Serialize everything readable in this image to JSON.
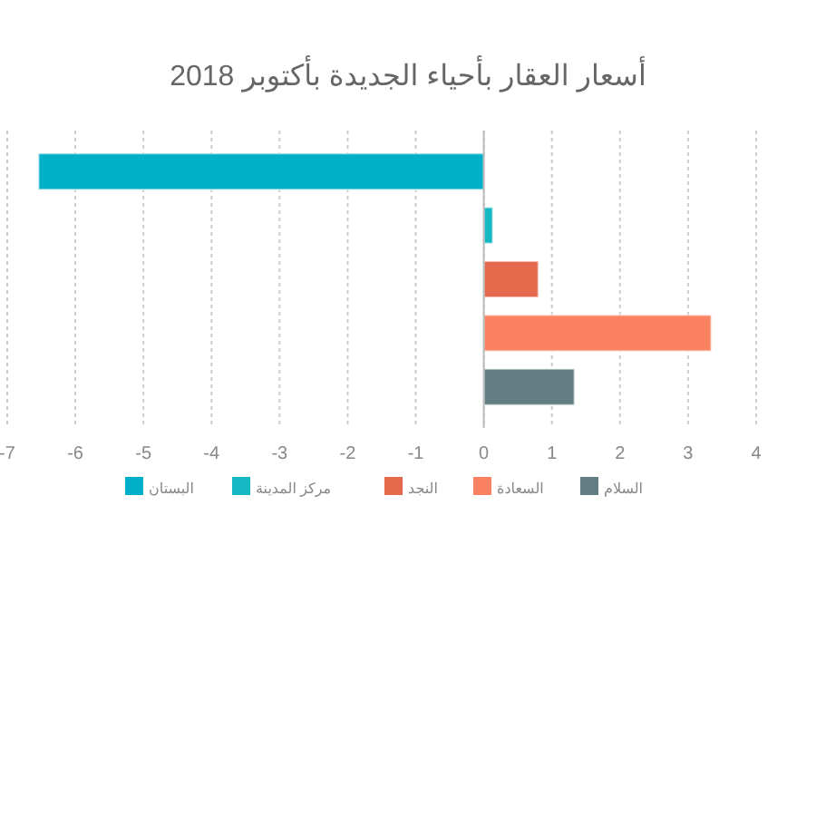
{
  "chart_data": {
    "type": "bar",
    "orientation": "horizontal",
    "title": "أسعار العقار بأحياء الجديدة بأكتوبر 2018",
    "categories": [
      null
    ],
    "series": [
      {
        "name": "البستان",
        "color": "#00afc8",
        "values": [
          -6.54
        ]
      },
      {
        "name": "مركز المدينة",
        "color": "#13b8c2",
        "values": [
          0.13
        ]
      },
      {
        "name": "النجد",
        "color": "#e5694d",
        "values": [
          0.8
        ]
      },
      {
        "name": "السعادة",
        "color": "#fa8263",
        "values": [
          3.34
        ]
      },
      {
        "name": "السلام",
        "color": "#627e82",
        "values": [
          1.33
        ]
      }
    ],
    "xlim": [
      -7,
      4
    ],
    "xticks": [
      -7,
      -6,
      -5,
      -4,
      -3,
      -2,
      -1,
      0,
      1,
      2,
      3,
      4
    ],
    "grid": "x",
    "legend": "bottom",
    "tick_labels": "x"
  }
}
